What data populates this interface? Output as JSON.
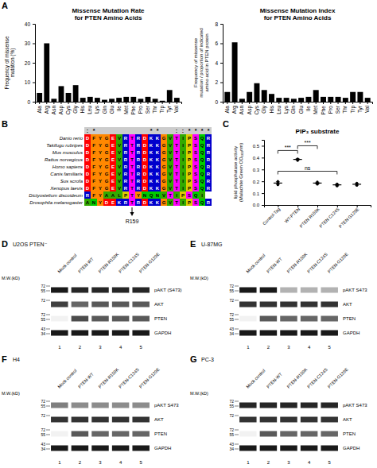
{
  "chart_data": [
    {
      "type": "bar",
      "panel_label": "A",
      "title": "Missense Mutation Rate\nfor PTEN Amino Acids",
      "y_label": "Frequency of missense\nmutation (%)",
      "categories": [
        "Ala",
        "Arg",
        "Asn",
        "Asp",
        "Cys",
        "Gly",
        "His",
        "Leu",
        "Lys",
        "Gln",
        "Glu",
        "Ile",
        "Met",
        "Phe",
        "Pro",
        "Ser",
        "Thr",
        "Trp",
        "Tyr",
        "Val"
      ],
      "values": [
        4.5,
        30.0,
        1.5,
        8.0,
        4.5,
        8.5,
        2.0,
        2.5,
        2.0,
        1.0,
        1.5,
        2.0,
        2.5,
        2.5,
        1.5,
        2.5,
        1.5,
        0.5,
        6.0,
        2.0
      ],
      "color": "#000000",
      "ylim": [
        0,
        40
      ],
      "yticks": [
        0,
        10,
        20,
        30,
        40
      ]
    },
    {
      "type": "bar",
      "title": "Missense Mutation Index\nfor PTEN Amino Acids",
      "y_label": "Frequency of missense\nmutation / proportion of indicated\namino acid in PTEN protein",
      "categories": [
        "Ala",
        "Arg",
        "Asn",
        "Asp",
        "Cys",
        "Gly",
        "His",
        "Leu",
        "Lys",
        "Gln",
        "Glu",
        "Ile",
        "Met",
        "Phe",
        "Pro",
        "Ser",
        "Thr",
        "Trp",
        "Tyr",
        "Val"
      ],
      "values": [
        1.0,
        6.1,
        0.3,
        1.0,
        1.9,
        1.2,
        0.8,
        0.4,
        0.4,
        0.3,
        0.4,
        0.5,
        1.2,
        0.5,
        0.5,
        0.5,
        0.4,
        1.0,
        1.0,
        0.4
      ],
      "color": "#000000",
      "ylim": [
        0,
        8
      ],
      "yticks": [
        0,
        2,
        4,
        6,
        8
      ]
    },
    {
      "type": "sequence_alignment",
      "panel_label": "B",
      "categories": [
        "Danio rerio",
        "Takifugu rubripes",
        "Mus musculus",
        "Rattus norvegicus",
        "Homo sapiens",
        "Canis familiaris",
        "Sus scrofa",
        "Xenopus laevis",
        "Dictyostelium discoideum",
        "Drosophila melanogaster"
      ],
      "sequences": [
        [
          "D",
          "F",
          "Y",
          "G",
          "E",
          "V",
          "R",
          "T",
          "R",
          "D",
          "K",
          "K",
          "G",
          "V",
          "T",
          "I",
          "P",
          "S",
          "Q",
          "R"
        ],
        [
          "D",
          "F",
          "Y",
          "G",
          "E",
          "V",
          "R",
          "T",
          "R",
          "D",
          "K",
          "K",
          "G",
          "V",
          "T",
          "I",
          "P",
          "S",
          "Q",
          "R"
        ],
        [
          "D",
          "F",
          "Y",
          "G",
          "E",
          "V",
          "R",
          "T",
          "R",
          "D",
          "K",
          "K",
          "G",
          "V",
          "T",
          "I",
          "P",
          "S",
          "Q",
          "R"
        ],
        [
          "D",
          "F",
          "Y",
          "G",
          "E",
          "V",
          "R",
          "T",
          "R",
          "D",
          "K",
          "K",
          "G",
          "V",
          "T",
          "I",
          "P",
          "S",
          "Q",
          "R"
        ],
        [
          "D",
          "F",
          "Y",
          "G",
          "E",
          "V",
          "R",
          "T",
          "R",
          "D",
          "K",
          "K",
          "G",
          "V",
          "T",
          "I",
          "P",
          "S",
          "Q",
          "R"
        ],
        [
          "D",
          "F",
          "Y",
          "G",
          "E",
          "V",
          "R",
          "T",
          "R",
          "D",
          "K",
          "K",
          "G",
          "V",
          "T",
          "I",
          "P",
          "S",
          "Q",
          "R"
        ],
        [
          "D",
          "F",
          "Y",
          "G",
          "E",
          "V",
          "R",
          "T",
          "R",
          "D",
          "K",
          "K",
          "G",
          "V",
          "T",
          "I",
          "P",
          "S",
          "Q",
          "R"
        ],
        [
          "D",
          "F",
          "Y",
          "G",
          "E",
          "V",
          "R",
          "T",
          "R",
          "D",
          "K",
          "K",
          "G",
          "V",
          "T",
          "I",
          "P",
          "S",
          "Q",
          "R"
        ],
        [
          "R",
          "F",
          "Y",
          "A",
          "A",
          "L",
          "P",
          "T",
          "Y",
          "N",
          "Q",
          "N",
          "V",
          "T",
          "I",
          "P",
          "S",
          "Q",
          "I",
          null
        ],
        [
          "A",
          "N",
          "Y",
          "D",
          "E",
          "K",
          "R",
          "T",
          "R",
          "D",
          "K",
          "K",
          "G",
          "V",
          "T",
          "I",
          "P",
          "S",
          "Q",
          "R"
        ]
      ],
      "conservation": [
        ":",
        "*",
        null,
        null,
        null,
        null,
        null,
        null,
        null,
        null,
        "*",
        "*",
        null,
        null,
        ":",
        ":",
        "*",
        "*",
        "*",
        "*"
      ],
      "residue_colors": {
        "D": "#FF0000",
        "E": "#FF0000",
        "R": "#0000CC",
        "K": "#0000CC",
        "F": "#FF8800",
        "Y": "#FF8800",
        "A": "#33AA00",
        "V": "#33AA00",
        "L": "#33AA00",
        "I": "#33AA00",
        "G": "#FF8800",
        "T": "#FF00FF",
        "S": "#FF00FF",
        "P": "#DDCC00",
        "N": "#00CC00",
        "Q": "#00CC00"
      },
      "annotation": {
        "label": "R159",
        "column": 7
      }
    },
    {
      "type": "dot",
      "panel_label": "C",
      "title": "PIP₃ substrate",
      "y_label": "lipid phosphatase activity\n(Malachite Green OD₆₀₀nm)",
      "categories": [
        "Control-Tag",
        "WT-PTEN",
        "PTEN R159K",
        "PTEN C124S",
        "PTEN G129E"
      ],
      "values": [
        0.185,
        0.385,
        0.185,
        0.17,
        0.175
      ],
      "points": [
        [
          0.17,
          0.18,
          0.19,
          0.2
        ],
        [
          0.375,
          0.38,
          0.385,
          0.39
        ],
        [
          0.175,
          0.18,
          0.185,
          0.195
        ],
        [
          0.16,
          0.165,
          0.172,
          0.178
        ],
        [
          0.165,
          0.17,
          0.178,
          0.185
        ]
      ],
      "errors": [
        0.0111803,
        0.0055902,
        0.0073951,
        0.0068328,
        0.0076322
      ],
      "ylim": [
        0.0,
        0.55
      ],
      "yticks": [
        {
          "value": 0.0,
          "label": "0.0"
        },
        0.1,
        0.2,
        0.3,
        0.4,
        0.5
      ],
      "annotations": [
        {
          "between": [
            "Control-Tag",
            "WT-PTEN"
          ],
          "y": 0.46,
          "label": "***"
        },
        {
          "between": [
            "WT-PTEN",
            "PTEN R159K"
          ],
          "y": 0.5,
          "label": "***"
        },
        {
          "between": [
            "Control-Tag",
            "PTEN C124S"
          ],
          "y": 0.285,
          "label": "ns"
        }
      ]
    },
    {
      "type": "western_blot",
      "panel_label": "D",
      "title": "U2OS PTEN⁻",
      "categories": [
        "Mock control",
        "PTEN-WT",
        "PTEN-R159K",
        "PTEN-C124S",
        "PTEN-G129E"
      ],
      "lane_labels": [
        "1",
        "2",
        "3",
        "4",
        "5"
      ],
      "mw_label": "M.W.(kD)",
      "bands": [
        {
          "name": "pAKT (S473)",
          "mw": [
            "72",
            "55"
          ],
          "values": [
            0.9,
            0.85,
            0.85,
            0.85,
            0.85
          ]
        },
        {
          "name": "AKT",
          "mw": [
            "72"
          ],
          "values": [
            0.75,
            0.6,
            0.65,
            0.65,
            0.65
          ]
        },
        {
          "name": "PTEN",
          "mw": [
            "72",
            "55"
          ],
          "values": [
            0.05,
            0.7,
            0.65,
            0.65,
            0.65
          ]
        },
        {
          "name": "GAPDH",
          "mw": [
            "43",
            "34"
          ],
          "values": [
            0.9,
            0.9,
            0.9,
            0.9,
            0.9
          ]
        }
      ]
    },
    {
      "type": "western_blot",
      "panel_label": "E",
      "title": "U-87MG",
      "categories": [
        "Mock control",
        "PTEN-WT",
        "PTEN-R159K",
        "PTEN-C124S",
        "PTEN-G129E"
      ],
      "lane_labels": [
        "1",
        "2",
        "3",
        "4",
        "5"
      ],
      "mw_label": "M.W.(kD)",
      "bands": [
        {
          "name": "pAKT S473",
          "mw": [
            "72",
            "55"
          ],
          "values": [
            0.9,
            0.9,
            0.3,
            0.3,
            0.3
          ]
        },
        {
          "name": "AKT",
          "mw": [
            "72"
          ],
          "values": [
            0.8,
            0.8,
            0.8,
            0.8,
            0.8
          ]
        },
        {
          "name": "PTEN",
          "mw": [
            "72",
            "55"
          ],
          "values": [
            0.05,
            0.65,
            0.6,
            0.6,
            0.6
          ]
        },
        {
          "name": "GAPDH",
          "mw": [
            "43",
            "34"
          ],
          "values": [
            0.9,
            0.9,
            0.9,
            0.9,
            0.9
          ]
        }
      ]
    },
    {
      "type": "western_blot",
      "panel_label": "F",
      "title": "H4",
      "categories": [
        "Mock control",
        "PTEN-WT",
        "PTEN-R159K",
        "PTEN-C124S",
        "PTEN-G129E"
      ],
      "lane_labels": [
        "1",
        "2",
        "3",
        "4",
        "5"
      ],
      "mw_label": "M.W.(kD)",
      "bands": [
        {
          "name": "pAKT S473",
          "mw": [
            "72",
            "55"
          ],
          "values": [
            0.5,
            0.45,
            0.45,
            0.45,
            0.45
          ]
        },
        {
          "name": "AKT",
          "mw": [
            "72"
          ],
          "values": [
            0.8,
            0.8,
            0.8,
            0.8,
            0.8
          ]
        },
        {
          "name": "PTEN",
          "mw": [
            "72",
            "55"
          ],
          "values": [
            0.05,
            0.65,
            0.6,
            0.6,
            0.6
          ]
        },
        {
          "name": "GAPDH",
          "mw": [
            "43",
            "34"
          ],
          "values": [
            0.9,
            0.9,
            0.9,
            0.9,
            0.9
          ]
        }
      ]
    },
    {
      "type": "western_blot",
      "panel_label": "G",
      "title": "PC-3",
      "categories": [
        "Mock control",
        "PTEN-WT",
        "PTEN-R159K",
        "PTEN-C124S",
        "PTEN-G129E"
      ],
      "lane_labels": [
        "1",
        "2",
        "3",
        "4",
        "5"
      ],
      "mw_label": "M.W.(kD)",
      "bands": [
        {
          "name": "pAKT S473",
          "mw": [
            "72",
            "55"
          ],
          "values": [
            0.85,
            0.85,
            0.85,
            0.85,
            0.85
          ]
        },
        {
          "name": "AKT",
          "mw": [
            "72"
          ],
          "values": [
            0.8,
            0.8,
            0.8,
            0.8,
            0.8
          ]
        },
        {
          "name": "PTEN",
          "mw": [
            "72",
            "55"
          ],
          "values": [
            0.05,
            0.65,
            0.6,
            0.6,
            0.6
          ]
        },
        {
          "name": "GAPDH",
          "mw": [
            "43",
            "34"
          ],
          "values": [
            0.9,
            0.9,
            0.9,
            0.9,
            0.9
          ]
        }
      ]
    }
  ]
}
